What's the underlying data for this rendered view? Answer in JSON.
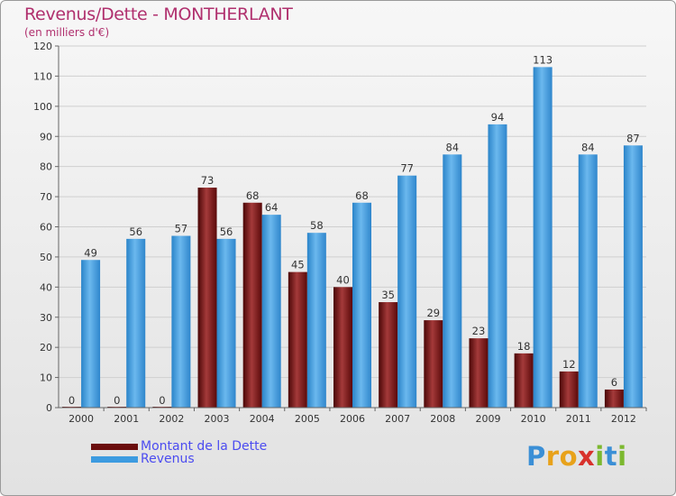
{
  "header": {
    "title": "Revenus/Dette - MONTHERLANT",
    "subtitle": "(en milliers d'€)"
  },
  "legend": {
    "items": [
      {
        "label": "Montant de la Dette",
        "color": "#6b0d0d"
      },
      {
        "label": "Revenus",
        "color": "#3d9be0"
      }
    ]
  },
  "logo": {
    "letters": [
      {
        "ch": "P",
        "color": "#3b8fd6"
      },
      {
        "ch": "r",
        "color": "#e8a21b"
      },
      {
        "ch": "o",
        "color": "#e8a21b"
      },
      {
        "ch": "x",
        "color": "#d8312c"
      },
      {
        "ch": "i",
        "color": "#7cb82f"
      },
      {
        "ch": "t",
        "color": "#3b8fd6"
      },
      {
        "ch": "i",
        "color": "#7cb82f"
      }
    ]
  },
  "chart_data": {
    "type": "bar",
    "title": "Revenus/Dette - MONTHERLANT",
    "subtitle": "(en milliers d'€)",
    "categories": [
      "2000",
      "2001",
      "2002",
      "2003",
      "2004",
      "2005",
      "2006",
      "2007",
      "2008",
      "2009",
      "2010",
      "2011",
      "2012"
    ],
    "series": [
      {
        "name": "Montant de la Dette",
        "color": "#6b0d0d",
        "values": [
          0,
          0,
          0,
          73,
          68,
          45,
          40,
          35,
          29,
          23,
          18,
          12,
          6
        ]
      },
      {
        "name": "Revenus",
        "color": "#3d9be0",
        "values": [
          49,
          56,
          57,
          56,
          64,
          58,
          68,
          77,
          84,
          94,
          113,
          84,
          87
        ]
      }
    ],
    "ylim": [
      0,
      120
    ],
    "yticks": [
      0,
      10,
      20,
      30,
      40,
      50,
      60,
      70,
      80,
      90,
      100,
      110,
      120
    ],
    "grid": true,
    "legend_position": "bottom-left"
  }
}
